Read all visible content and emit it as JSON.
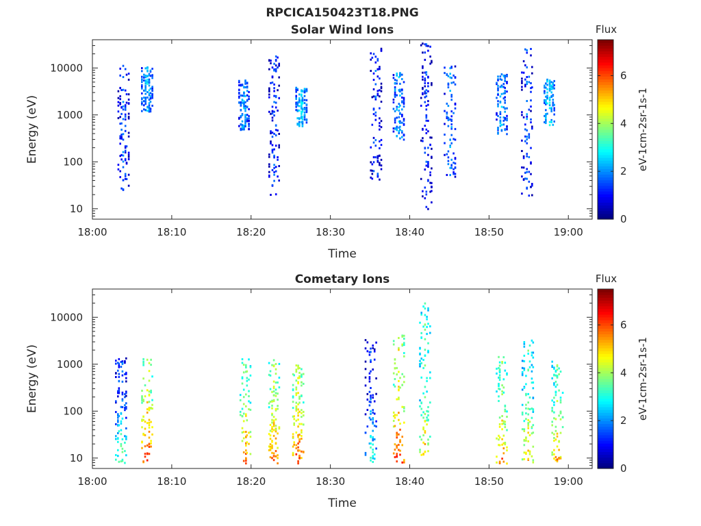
{
  "figure": {
    "title": "RPCICA150423T18.PNG"
  },
  "chart_data": [
    {
      "type": "heatmap",
      "title": "Solar Wind Ions",
      "xlabel": "Time",
      "ylabel": "Energy (eV)",
      "x_tick_labels": [
        "18:00",
        "18:10",
        "18:20",
        "18:30",
        "18:40",
        "18:50",
        "19:00"
      ],
      "x_tick_minutes": [
        0,
        10,
        20,
        30,
        40,
        50,
        60
      ],
      "xlim_minutes": [
        0,
        63
      ],
      "y_scale": "log",
      "ylim": [
        6,
        40000
      ],
      "y_tick_labels": [
        "10",
        "100",
        "1000",
        "10000"
      ],
      "y_tick_values": [
        10,
        100,
        1000,
        10000
      ],
      "colorbar": {
        "title": "Flux",
        "label": "eV-1cm-2sr-1s-1",
        "range": [
          0,
          7.5
        ],
        "tick_labels": [
          "0",
          "2",
          "4",
          "6"
        ],
        "tick_values": [
          0,
          2,
          4,
          6
        ]
      },
      "bursts": [
        {
          "t": 3.8,
          "e_min": 25,
          "e_max": 12000,
          "level": 1.6
        },
        {
          "t": 6.8,
          "e_min": 1200,
          "e_max": 11000,
          "level": 2.4
        },
        {
          "t": 22.8,
          "e_min": 20,
          "e_max": 20000,
          "level": 1.5
        },
        {
          "t": 19.0,
          "e_min": 500,
          "e_max": 6000,
          "level": 2.3
        },
        {
          "t": 26.2,
          "e_min": 600,
          "e_max": 4000,
          "level": 2.6
        },
        {
          "t": 35.6,
          "e_min": 40,
          "e_max": 30000,
          "level": 1.5
        },
        {
          "t": 42.0,
          "e_min": 10,
          "e_max": 35000,
          "level": 1.4
        },
        {
          "t": 38.5,
          "e_min": 300,
          "e_max": 9000,
          "level": 2.3
        },
        {
          "t": 45.0,
          "e_min": 50,
          "e_max": 12000,
          "level": 2.0
        },
        {
          "t": 54.7,
          "e_min": 20,
          "e_max": 30000,
          "level": 1.6
        },
        {
          "t": 51.5,
          "e_min": 400,
          "e_max": 8000,
          "level": 2.3
        },
        {
          "t": 57.5,
          "e_min": 600,
          "e_max": 6000,
          "level": 2.6
        }
      ]
    },
    {
      "type": "heatmap",
      "title": "Cometary Ions",
      "xlabel": "Time",
      "ylabel": "Energy (eV)",
      "x_tick_labels": [
        "18:00",
        "18:10",
        "18:20",
        "18:30",
        "18:40",
        "18:50",
        "19:00"
      ],
      "x_tick_minutes": [
        0,
        10,
        20,
        30,
        40,
        50,
        60
      ],
      "xlim_minutes": [
        0,
        63
      ],
      "y_scale": "log",
      "ylim": [
        6,
        40000
      ],
      "y_tick_labels": [
        "10",
        "100",
        "1000",
        "10000"
      ],
      "y_tick_values": [
        10,
        100,
        1000,
        10000
      ],
      "colorbar": {
        "title": "Flux",
        "label": "eV-1cm-2sr-1s-1",
        "range": [
          0,
          7.5
        ],
        "tick_labels": [
          "0",
          "2",
          "4",
          "6"
        ],
        "tick_values": [
          0,
          2,
          4,
          6
        ]
      },
      "bursts": [
        {
          "t": 3.5,
          "e_min": 8,
          "e_max": 1400,
          "level": 3.0
        },
        {
          "t": 6.8,
          "e_min": 8,
          "e_max": 1500,
          "level": 5.6
        },
        {
          "t": 19.2,
          "e_min": 8,
          "e_max": 1500,
          "level": 5.0
        },
        {
          "t": 22.8,
          "e_min": 8,
          "e_max": 1300,
          "level": 5.2
        },
        {
          "t": 25.8,
          "e_min": 8,
          "e_max": 1000,
          "level": 5.5
        },
        {
          "t": 35.0,
          "e_min": 8,
          "e_max": 3500,
          "level": 2.5
        },
        {
          "t": 38.5,
          "e_min": 8,
          "e_max": 4500,
          "level": 5.8
        },
        {
          "t": 41.8,
          "e_min": 12,
          "e_max": 22000,
          "level": 4.6
        },
        {
          "t": 51.5,
          "e_min": 8,
          "e_max": 1500,
          "level": 5.0
        },
        {
          "t": 54.8,
          "e_min": 8,
          "e_max": 3800,
          "level": 4.5
        },
        {
          "t": 58.5,
          "e_min": 8,
          "e_max": 1200,
          "level": 4.8
        }
      ]
    }
  ]
}
